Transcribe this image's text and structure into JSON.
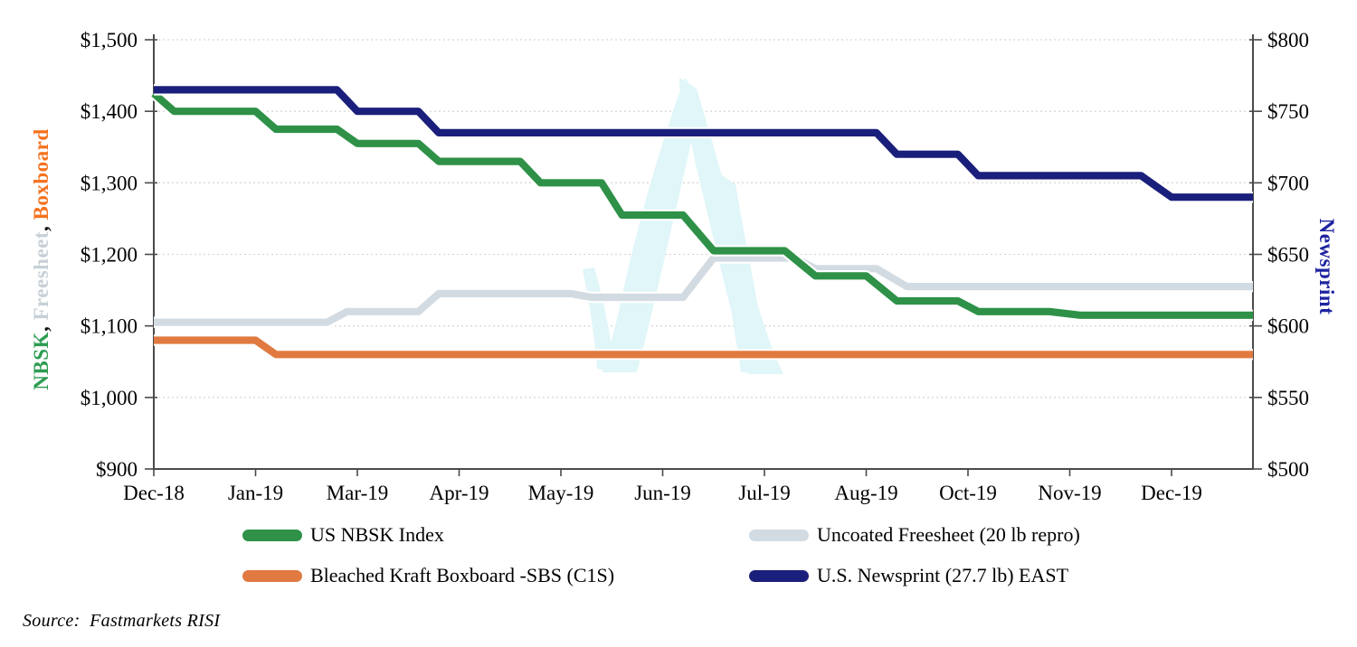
{
  "source_note": "Source:  Fastmarkets RISI",
  "left_axis_title_parts": [
    {
      "text": "NBSK",
      "color": "#2E9C52"
    },
    {
      "text": ", ",
      "color": "#111111"
    },
    {
      "text": "Freesheet",
      "color": "#C7D0D7"
    },
    {
      "text": ", ",
      "color": "#111111"
    },
    {
      "text": "Boxboard",
      "color": "#F4711C"
    }
  ],
  "right_axis_title": {
    "text": "Newsprint",
    "color": "#1F24A0"
  },
  "colors": {
    "gridline": "#D8D8D8",
    "axis_line": "#4A4A4A",
    "line_casing": "#FFFFFF",
    "watermark": "#E0F6F8"
  },
  "chart_data": {
    "type": "line",
    "style": "stepped weekly price lines",
    "x_axis": {
      "unit": "weekly observations, Dec-2018 through Dec-2019",
      "tick_labels": [
        "Dec-18",
        "Jan-19",
        "Mar-19",
        "Apr-19",
        "May-19",
        "Jun-19",
        "Jul-19",
        "Aug-19",
        "Oct-19",
        "Nov-19",
        "Dec-19"
      ],
      "tick_week_positions": [
        0,
        5,
        10,
        15,
        20,
        25,
        30,
        35,
        40,
        45,
        50
      ],
      "total_weeks": 54
    },
    "left_axis": {
      "label": "NBSK, Freesheet, Boxboard",
      "min": 900,
      "max": 1500,
      "tick_step": 100,
      "tick_labels": [
        "$1,500",
        "$1,400",
        "$1,300",
        "$1,200",
        "$1,100",
        "$1,000",
        "$900"
      ]
    },
    "right_axis": {
      "label": "Newsprint",
      "min": 500,
      "max": 800,
      "tick_step": 50,
      "tick_labels": [
        "$800",
        "$750",
        "$700",
        "$650",
        "$600",
        "$550",
        "$500"
      ]
    },
    "grid": "horizontal dotted gridlines on",
    "legend_position": "bottom, two columns",
    "series": [
      {
        "name": "US NBSK Index",
        "axis": "left",
        "color": "#2E9147",
        "step_points": [
          [
            0,
            1425
          ],
          [
            1,
            1400
          ],
          [
            5,
            1400
          ],
          [
            6,
            1375
          ],
          [
            9,
            1375
          ],
          [
            10,
            1355
          ],
          [
            13,
            1355
          ],
          [
            14,
            1330
          ],
          [
            18,
            1330
          ],
          [
            19,
            1300
          ],
          [
            22,
            1300
          ],
          [
            23,
            1255
          ],
          [
            26,
            1255
          ],
          [
            27.5,
            1205
          ],
          [
            31,
            1205
          ],
          [
            32.5,
            1170
          ],
          [
            35,
            1170
          ],
          [
            36.5,
            1135
          ],
          [
            39.5,
            1135
          ],
          [
            40.5,
            1120
          ],
          [
            44,
            1120
          ],
          [
            45.5,
            1115
          ],
          [
            54,
            1115
          ]
        ]
      },
      {
        "name": "Uncoated Freesheet (20 lb repro)",
        "axis": "left",
        "color": "#D3DBE2",
        "step_points": [
          [
            0,
            1105
          ],
          [
            8.5,
            1105
          ],
          [
            9.5,
            1120
          ],
          [
            13,
            1120
          ],
          [
            14,
            1145
          ],
          [
            20.5,
            1145
          ],
          [
            21.5,
            1140
          ],
          [
            26,
            1140
          ],
          [
            27.5,
            1195
          ],
          [
            31.5,
            1195
          ],
          [
            32.5,
            1180
          ],
          [
            35.5,
            1180
          ],
          [
            37,
            1155
          ],
          [
            54,
            1155
          ]
        ]
      },
      {
        "name": "Bleached Kraft Boxboard -SBS (C1S)",
        "axis": "left",
        "color": "#E07A40",
        "step_points": [
          [
            0,
            1080
          ],
          [
            5,
            1080
          ],
          [
            6,
            1060
          ],
          [
            54,
            1060
          ]
        ]
      },
      {
        "name": "U.S. Newsprint (27.7 lb) EAST",
        "axis": "right",
        "color": "#1A1F7B",
        "step_points": [
          [
            0,
            765
          ],
          [
            9,
            765
          ],
          [
            10,
            750
          ],
          [
            13,
            750
          ],
          [
            14,
            735
          ],
          [
            35.5,
            735
          ],
          [
            36.5,
            720
          ],
          [
            39.5,
            720
          ],
          [
            40.5,
            705
          ],
          [
            48.5,
            705
          ],
          [
            50,
            690
          ],
          [
            54,
            690
          ]
        ]
      }
    ],
    "watermark": "pale cyan stylized mountain-peak logo behind lines"
  }
}
